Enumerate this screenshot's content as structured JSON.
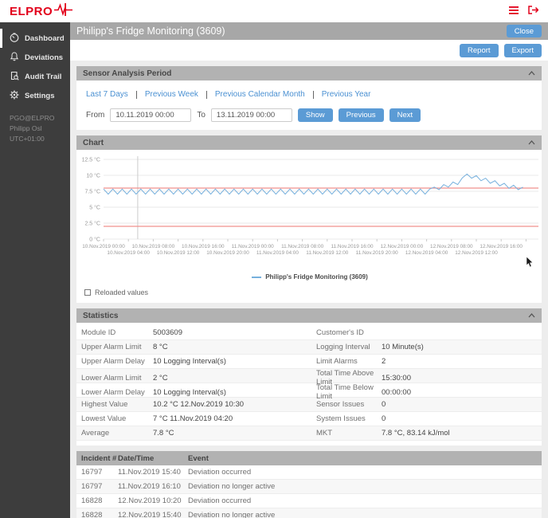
{
  "topbar": {
    "logo_text": "ELPRO"
  },
  "sidebar": {
    "items": [
      {
        "label": "Dashboard"
      },
      {
        "label": "Deviations"
      },
      {
        "label": "Audit Trail"
      },
      {
        "label": "Settings"
      }
    ],
    "user": {
      "account": "PGO@ELPRO",
      "name": "Philipp Osl",
      "timezone": "UTC+01:00"
    }
  },
  "header": {
    "title": "Philipp's Fridge Monitoring (3609)",
    "close_label": "Close",
    "report_label": "Report",
    "export_label": "Export"
  },
  "analysis_period": {
    "section_title": "Sensor Analysis Period",
    "links": [
      "Last 7 Days",
      "Previous Week",
      "Previous Calendar Month",
      "Previous Year"
    ],
    "from_label": "From",
    "from_value": "10.11.2019 00:00",
    "to_label": "To",
    "to_value": "13.11.2019 00:00",
    "buttons": {
      "show": "Show",
      "previous": "Previous",
      "next": "Next"
    }
  },
  "chart_section": {
    "section_title": "Chart",
    "reloaded_values_label": "Reloaded values"
  },
  "chart_data": {
    "type": "line",
    "title": "Chart",
    "ylabel": "°C",
    "ylim": [
      0,
      12.5
    ],
    "grid": true,
    "legend_position": "bottom-center",
    "y_ticks": [
      {
        "value": 12.5,
        "label": "12.5 °C"
      },
      {
        "value": 10,
        "label": "10 °C"
      },
      {
        "value": 7.5,
        "label": "7.5 °C"
      },
      {
        "value": 5,
        "label": "5 °C"
      },
      {
        "value": 2.5,
        "label": "2.5 °C"
      },
      {
        "value": 0,
        "label": "0 °C"
      }
    ],
    "x_domain_hours": [
      0,
      70
    ],
    "x_ticks_top": [
      {
        "hour": 0,
        "label": "10.Nov.2019 00:00"
      },
      {
        "hour": 8,
        "label": "10.Nov.2019 08:00"
      },
      {
        "hour": 16,
        "label": "10.Nov.2019 16:00"
      },
      {
        "hour": 24,
        "label": "11.Nov.2019 00:00"
      },
      {
        "hour": 32,
        "label": "11.Nov.2019 08:00"
      },
      {
        "hour": 40,
        "label": "11.Nov.2019 16:00"
      },
      {
        "hour": 48,
        "label": "12.Nov.2019 00:00"
      },
      {
        "hour": 56,
        "label": "12.Nov.2019 08:00"
      },
      {
        "hour": 64,
        "label": "12.Nov.2019 16:00"
      }
    ],
    "x_ticks_bottom": [
      {
        "hour": 4,
        "label": "10.Nov.2019 04:00"
      },
      {
        "hour": 12,
        "label": "10.Nov.2019 12:00"
      },
      {
        "hour": 20,
        "label": "10.Nov.2019 20:00"
      },
      {
        "hour": 28,
        "label": "11.Nov.2019 04:00"
      },
      {
        "hour": 36,
        "label": "11.Nov.2019 12:00"
      },
      {
        "hour": 44,
        "label": "11.Nov.2019 20:00"
      },
      {
        "hour": 52,
        "label": "12.Nov.2019 04:00"
      },
      {
        "hour": 60,
        "label": "12.Nov.2019 12:00"
      }
    ],
    "upper_alarm_limit": 8,
    "lower_alarm_limit": 2,
    "limit_line_color": "#f0908e",
    "marker_hour": 5.5,
    "marker_color": "#cccccc",
    "grid_color": "#e8e8e8",
    "axis_text_color": "#999999",
    "series": [
      {
        "name": "Philipp's Fridge Monitoring (3609)",
        "color": "#76b0dd",
        "baseline_oscillation": {
          "from_hour": 0,
          "to_hour": 52.5,
          "period_hours": 1.5,
          "min": 7.05,
          "max": 7.85
        },
        "excursion_points": [
          [
            53.25,
            8.15
          ],
          [
            54,
            7.75
          ],
          [
            54.75,
            8.55
          ],
          [
            55.5,
            8.15
          ],
          [
            56.25,
            8.95
          ],
          [
            57,
            8.55
          ],
          [
            57.75,
            9.6
          ],
          [
            58.5,
            10.2
          ],
          [
            59.25,
            9.55
          ],
          [
            60,
            9.95
          ],
          [
            60.75,
            9.15
          ],
          [
            61.5,
            9.55
          ],
          [
            62.25,
            8.75
          ],
          [
            63,
            9.15
          ],
          [
            63.75,
            8.35
          ],
          [
            64.5,
            8.75
          ],
          [
            65.25,
            7.95
          ],
          [
            66,
            8.45
          ],
          [
            66.75,
            7.75
          ],
          [
            67.5,
            8.15
          ]
        ]
      }
    ],
    "legend": {
      "label": "Philipp's Fridge Monitoring (3609)"
    }
  },
  "statistics": {
    "section_title": "Statistics",
    "rows": [
      {
        "label1": "Module ID",
        "value1": "5003609",
        "label2": "Customer's ID",
        "value2": ""
      },
      {
        "label1": "Upper Alarm Limit",
        "value1": "8 °C",
        "label2": "Logging Interval",
        "value2": "10 Minute(s)"
      },
      {
        "label1": "Upper Alarm Delay",
        "value1": "10 Logging Interval(s)",
        "label2": "Limit Alarms",
        "value2": "2"
      },
      {
        "label1": "Lower Alarm Limit",
        "value1": "2 °C",
        "label2": "Total Time Above Limit",
        "value2": "15:30:00"
      },
      {
        "label1": "Lower Alarm Delay",
        "value1": "10 Logging Interval(s)",
        "label2": "Total Time Below Limit",
        "value2": "00:00:00"
      },
      {
        "label1": "Highest Value",
        "value1": "10.2 °C 12.Nov.2019 10:30",
        "label2": "Sensor Issues",
        "value2": "0"
      },
      {
        "label1": "Lowest Value",
        "value1": "7 °C 11.Nov.2019 04:20",
        "label2": "System Issues",
        "value2": "0"
      },
      {
        "label1": "Average",
        "value1": "7.8 °C",
        "label2": "MKT",
        "value2": "7.8 °C, 83.14 kJ/mol"
      }
    ]
  },
  "incidents": {
    "columns": [
      "Incident #",
      "Date/Time",
      "Event"
    ],
    "rows": [
      {
        "id": "16797",
        "datetime": "11.Nov.2019 15:40",
        "event": "Deviation occurred"
      },
      {
        "id": "16797",
        "datetime": "11.Nov.2019 16:10",
        "event": "Deviation no longer active"
      },
      {
        "id": "16828",
        "datetime": "12.Nov.2019 10:20",
        "event": "Deviation occurred"
      },
      {
        "id": "16828",
        "datetime": "12.Nov.2019 15:40",
        "event": "Deviation no longer active"
      }
    ]
  },
  "colors": {
    "brand_red": "#e2001a",
    "button_blue": "#5b9bd5",
    "link_blue": "#4a90d2",
    "sidebar_bg": "#3d3d3d",
    "titlebar_gray": "#a7a7a7",
    "section_header_gray": "#b2b2b2",
    "series_blue": "#76b0dd",
    "limit_red": "#f0908e"
  }
}
